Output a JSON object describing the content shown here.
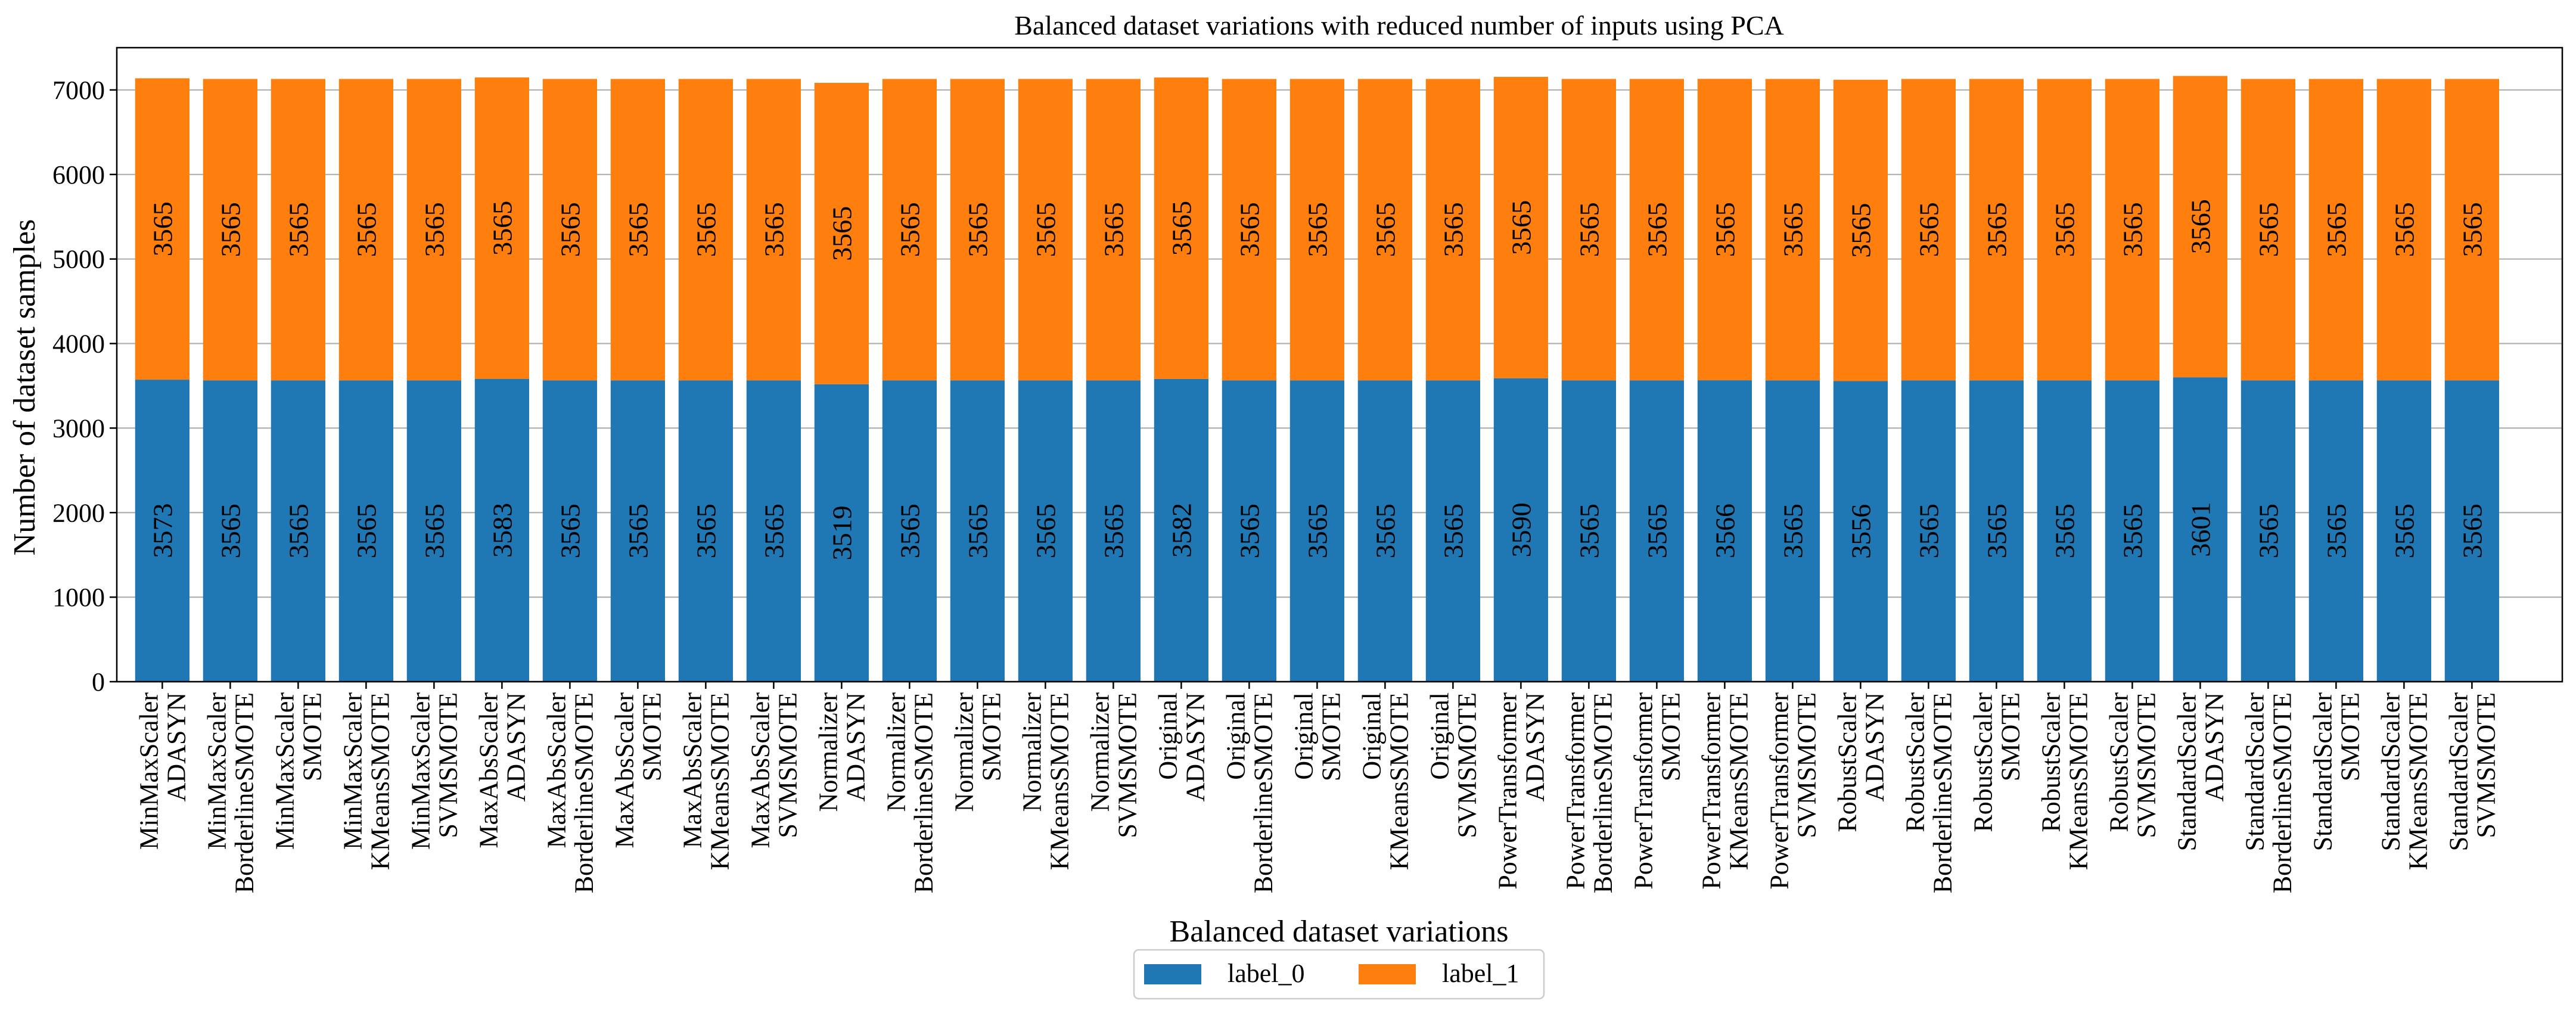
{
  "chart_data": {
    "type": "bar",
    "stacked": true,
    "title": "Balanced dataset variations with reduced number of inputs using PCA",
    "xlabel": "Balanced dataset variations",
    "ylabel": "Number of dataset samples",
    "ylim": [
      0,
      7500
    ],
    "yticks": [
      0,
      1000,
      2000,
      3000,
      4000,
      5000,
      6000,
      7000
    ],
    "grid": true,
    "legend_position": "bottom-center",
    "categories": [
      [
        "MinMaxScaler",
        "ADASYN"
      ],
      [
        "MinMaxScaler",
        "BorderlineSMOTE"
      ],
      [
        "MinMaxScaler",
        "SMOTE"
      ],
      [
        "MinMaxScaler",
        "KMeansSMOTE"
      ],
      [
        "MinMaxScaler",
        "SVMSMOTE"
      ],
      [
        "MaxAbsScaler",
        "ADASYN"
      ],
      [
        "MaxAbsScaler",
        "BorderlineSMOTE"
      ],
      [
        "MaxAbsScaler",
        "SMOTE"
      ],
      [
        "MaxAbsScaler",
        "KMeansSMOTE"
      ],
      [
        "MaxAbsScaler",
        "SVMSMOTE"
      ],
      [
        "Normalizer",
        "ADASYN"
      ],
      [
        "Normalizer",
        "BorderlineSMOTE"
      ],
      [
        "Normalizer",
        "SMOTE"
      ],
      [
        "Normalizer",
        "KMeansSMOTE"
      ],
      [
        "Normalizer",
        "SVMSMOTE"
      ],
      [
        "Original",
        "ADASYN"
      ],
      [
        "Original",
        "BorderlineSMOTE"
      ],
      [
        "Original",
        "SMOTE"
      ],
      [
        "Original",
        "KMeansSMOTE"
      ],
      [
        "Original",
        "SVMSMOTE"
      ],
      [
        "PowerTransformer",
        "ADASYN"
      ],
      [
        "PowerTransformer",
        "BorderlineSMOTE"
      ],
      [
        "PowerTransformer",
        "SMOTE"
      ],
      [
        "PowerTransformer",
        "KMeansSMOTE"
      ],
      [
        "PowerTransformer",
        "SVMSMOTE"
      ],
      [
        "RobustScaler",
        "ADASYN"
      ],
      [
        "RobustScaler",
        "BorderlineSMOTE"
      ],
      [
        "RobustScaler",
        "SMOTE"
      ],
      [
        "RobustScaler",
        "KMeansSMOTE"
      ],
      [
        "RobustScaler",
        "SVMSMOTE"
      ],
      [
        "StandardScaler",
        "ADASYN"
      ],
      [
        "StandardScaler",
        "BorderlineSMOTE"
      ],
      [
        "StandardScaler",
        "SMOTE"
      ],
      [
        "StandardScaler",
        "KMeansSMOTE"
      ],
      [
        "StandardScaler",
        "SVMSMOTE"
      ]
    ],
    "series": [
      {
        "name": "label_0",
        "color": "#1f77b4",
        "values": [
          3573,
          3565,
          3565,
          3565,
          3565,
          3583,
          3565,
          3565,
          3565,
          3565,
          3519,
          3565,
          3565,
          3565,
          3565,
          3582,
          3565,
          3565,
          3565,
          3565,
          3590,
          3565,
          3565,
          3566,
          3565,
          3556,
          3565,
          3565,
          3565,
          3565,
          3601,
          3565,
          3565,
          3565,
          3565
        ]
      },
      {
        "name": "label_1",
        "color": "#ff7f0e",
        "values": [
          3565,
          3565,
          3565,
          3565,
          3565,
          3565,
          3565,
          3565,
          3565,
          3565,
          3565,
          3565,
          3565,
          3565,
          3565,
          3565,
          3565,
          3565,
          3565,
          3565,
          3565,
          3565,
          3565,
          3565,
          3565,
          3565,
          3565,
          3565,
          3565,
          3565,
          3565,
          3565,
          3565,
          3565,
          3565
        ]
      }
    ]
  }
}
